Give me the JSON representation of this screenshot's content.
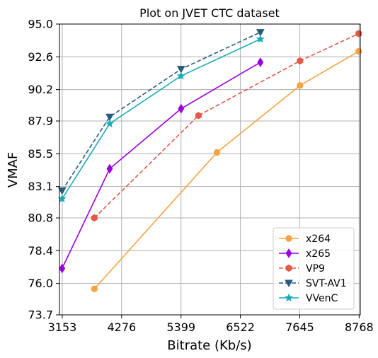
{
  "chart_data": {
    "type": "line",
    "title": "Plot on JVET CTC dataset",
    "xlabel": "Bitrate (Kb/s)",
    "ylabel": "VMAF",
    "xlim": [
      3100,
      8790
    ],
    "ylim": [
      73.7,
      95.0
    ],
    "xticks": [
      3153,
      4276,
      5399,
      6522,
      7645,
      8768
    ],
    "yticks": [
      73.7,
      76.0,
      78.4,
      80.8,
      83.1,
      85.5,
      87.9,
      90.2,
      92.6,
      95.0
    ],
    "ytick_labels": [
      "73.7",
      "76.0",
      "78.4",
      "80.8",
      "83.1",
      "85.5",
      "87.9",
      "90.2",
      "92.6",
      "95.0"
    ],
    "grid": true,
    "legend_position": "lower-right",
    "series": [
      {
        "name": "x264",
        "color": "#f4a444",
        "marker": "circle",
        "dash": "solid",
        "x": [
          3760,
          6080,
          7650,
          8760
        ],
        "y": [
          75.6,
          85.6,
          90.5,
          93.0
        ]
      },
      {
        "name": "x265",
        "color": "#9900dd",
        "marker": "diamond",
        "dash": "solid",
        "x": [
          3150,
          4050,
          5400,
          6900
        ],
        "y": [
          77.1,
          84.4,
          88.8,
          92.2
        ]
      },
      {
        "name": "VP9",
        "color": "#e05a47",
        "marker": "hexagon",
        "dash": "dashed",
        "x": [
          3760,
          5730,
          7650,
          8760
        ],
        "y": [
          80.8,
          88.3,
          92.3,
          94.3
        ]
      },
      {
        "name": "SVT-AV1",
        "color": "#2a5a7c",
        "marker": "triangle-down",
        "dash": "dashed",
        "x": [
          3150,
          4050,
          5400,
          6900
        ],
        "y": [
          82.8,
          88.2,
          91.7,
          94.4
        ]
      },
      {
        "name": "VVenC",
        "color": "#1aabb8",
        "marker": "star",
        "dash": "solid",
        "x": [
          3150,
          4050,
          5400,
          6900
        ],
        "y": [
          82.2,
          87.7,
          91.2,
          93.9
        ]
      }
    ]
  }
}
